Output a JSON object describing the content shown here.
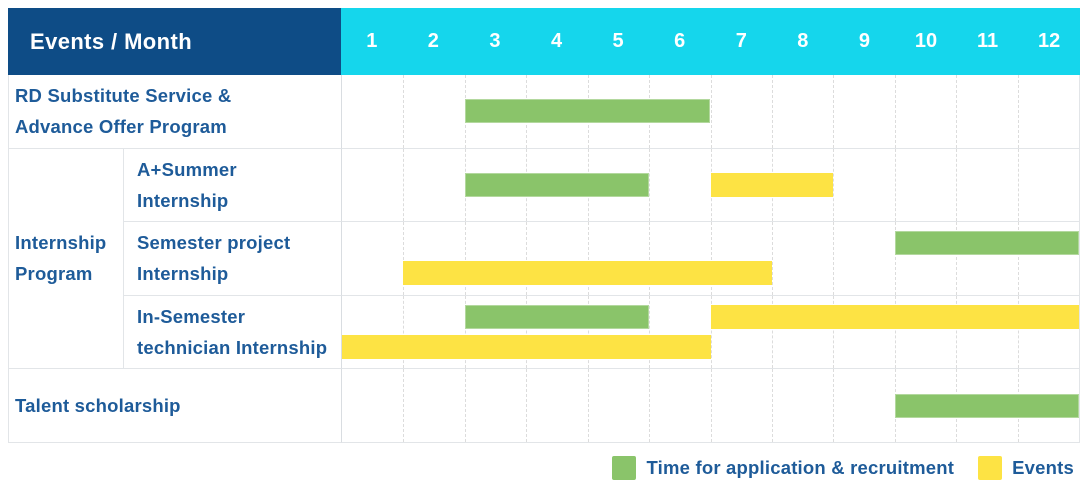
{
  "header": {
    "label": "Events / Month",
    "months": [
      "1",
      "2",
      "3",
      "4",
      "5",
      "6",
      "7",
      "8",
      "9",
      "10",
      "11",
      "12"
    ]
  },
  "colors": {
    "navy": "#0e4c86",
    "cyan": "#15d6ec",
    "green": "#8ac46a",
    "yellow": "#fde344",
    "label_text": "#1e5b99",
    "grid": "#e2e5e8",
    "gridsolid": "#d9dde1",
    "griddash": "#dcdcdc"
  },
  "rows": [
    {
      "label": "RD Substitute Service &\nAdvance Offer Program",
      "bars": [
        {
          "color": "green",
          "start": 3,
          "end": 6,
          "lane": "center"
        }
      ]
    },
    {
      "group": "Internship\nProgram",
      "label": "A+Summer\nInternship",
      "bars": [
        {
          "color": "green",
          "start": 3,
          "end": 5,
          "lane": "center"
        },
        {
          "color": "yellow",
          "start": 7,
          "end": 8,
          "lane": "center"
        }
      ]
    },
    {
      "label": "Semester project\nInternship",
      "bars": [
        {
          "color": "green",
          "start": 10,
          "end": 12,
          "lane": "top"
        },
        {
          "color": "yellow",
          "start": 2,
          "end": 7,
          "lane": "bottom"
        }
      ]
    },
    {
      "label": "In-Semester\ntechnician Internship",
      "bars": [
        {
          "color": "green",
          "start": 3,
          "end": 5,
          "lane": "top"
        },
        {
          "color": "yellow",
          "start": 7,
          "end": 12,
          "lane": "top"
        },
        {
          "color": "yellow",
          "start": 1,
          "end": 6,
          "lane": "bottom"
        }
      ]
    },
    {
      "label": "Talent scholarship",
      "bars": [
        {
          "color": "green",
          "start": 10,
          "end": 12,
          "lane": "center"
        }
      ]
    }
  ],
  "legend": {
    "items": [
      {
        "color": "green",
        "label": "Time for application & recruitment"
      },
      {
        "color": "yellow",
        "label": "Events"
      }
    ]
  },
  "chart_data": {
    "type": "table",
    "title": "Events / Month",
    "xlabel": "Month",
    "x_ticks": [
      1,
      2,
      3,
      4,
      5,
      6,
      7,
      8,
      9,
      10,
      11,
      12
    ],
    "xlim": [
      1,
      12
    ],
    "grid": true,
    "legend_position": "bottom-right",
    "series_meaning": {
      "green": "Time for application & recruitment",
      "yellow": "Events"
    },
    "rows": [
      {
        "event": "RD Substitute Service & Advance Offer Program",
        "application_recruitment_months": [
          [
            3,
            6
          ]
        ],
        "events_months": []
      },
      {
        "event": "Internship Program - A+Summer Internship",
        "application_recruitment_months": [
          [
            3,
            5
          ]
        ],
        "events_months": [
          [
            7,
            8
          ]
        ]
      },
      {
        "event": "Internship Program - Semester project Internship",
        "application_recruitment_months": [
          [
            10,
            12
          ]
        ],
        "events_months": [
          [
            2,
            7
          ]
        ]
      },
      {
        "event": "Internship Program - In-Semester technician Internship",
        "application_recruitment_months": [
          [
            3,
            5
          ]
        ],
        "events_months": [
          [
            1,
            6
          ],
          [
            7,
            12
          ]
        ]
      },
      {
        "event": "Talent scholarship",
        "application_recruitment_months": [
          [
            10,
            12
          ]
        ],
        "events_months": []
      }
    ]
  }
}
